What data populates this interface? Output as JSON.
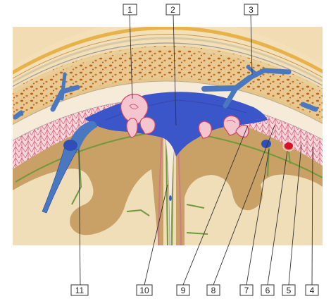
{
  "labels": {
    "top": [
      "1",
      "2",
      "3"
    ],
    "bottom": [
      "11",
      "10",
      "9",
      "8",
      "7",
      "6",
      "5",
      "4"
    ]
  },
  "colors": {
    "skin": "#f2ddb4",
    "skin_hair": "#e8b24a",
    "bone": "#e9c891",
    "bone_pores": "#b8641a",
    "dura": "#f6e8d6",
    "venous_blood": "#3b56c8",
    "arachnoid": "#f4c4cf",
    "arachnoid_lines": "#cf4463",
    "brain_gray": "#c9a066",
    "brain_white": "#f0deb9",
    "pia_vessels": "#6f9a3c",
    "artery": "#d8102a"
  }
}
